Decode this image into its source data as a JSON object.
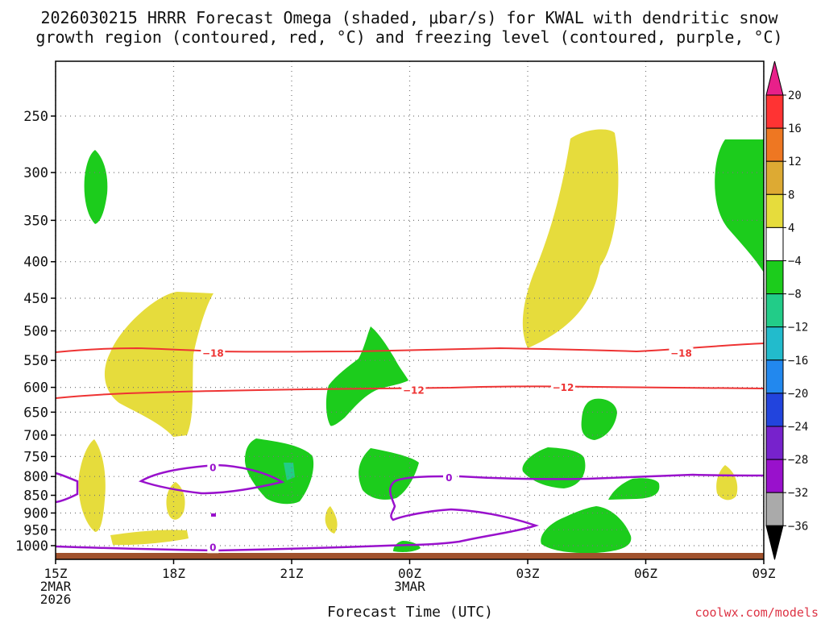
{
  "title_line1": "2026030215 HRRR Forecast Omega (shaded, μbar/s) for KWAL with dendritic snow",
  "title_line2": "growth region (contoured, red, °C) and freezing level (contoured, purple, °C)",
  "xlabel": "Forecast Time (UTC)",
  "credit": "coolwx.com/models",
  "colors": {
    "dgz_contour": "#ee3333",
    "freezing_contour": "#9911cc",
    "ground": "#a0522d",
    "grid": "#777777"
  },
  "chart_data": {
    "type": "contour",
    "x_axis": {
      "ticks": [
        {
          "hours": 0,
          "lines": [
            "15Z",
            "2MAR",
            "2026"
          ]
        },
        {
          "hours": 3,
          "lines": [
            "18Z"
          ]
        },
        {
          "hours": 6,
          "lines": [
            "21Z"
          ]
        },
        {
          "hours": 9,
          "lines": [
            "00Z",
            "3MAR"
          ]
        },
        {
          "hours": 12,
          "lines": [
            "03Z"
          ]
        },
        {
          "hours": 15,
          "lines": [
            "06Z"
          ]
        },
        {
          "hours": 18,
          "lines": [
            "09Z"
          ]
        }
      ],
      "range_hours": [
        0,
        18
      ]
    },
    "y_axis": {
      "unit": "hPa",
      "scale": "pressure (reversed)",
      "ticks": [
        250,
        300,
        350,
        400,
        450,
        500,
        550,
        600,
        650,
        700,
        750,
        800,
        850,
        900,
        950,
        1000
      ],
      "grid": "dotted"
    },
    "colorbar": {
      "arrow_top_color": "#e8208a",
      "arrow_bottom_color": "#000000",
      "segments": [
        {
          "color": "#ff3333"
        },
        {
          "color": "#ee7722"
        },
        {
          "color": "#ddaa33"
        },
        {
          "color": "#e6dc3c"
        },
        {
          "color": "#ffffff"
        },
        {
          "color": "#1ccc1c"
        },
        {
          "color": "#22cc88"
        },
        {
          "color": "#22bbcc"
        },
        {
          "color": "#2288ee"
        },
        {
          "color": "#2244dd"
        },
        {
          "color": "#7722cc"
        },
        {
          "color": "#9911cc"
        },
        {
          "color": "#aaaaaa"
        }
      ],
      "labels": [
        "20",
        "16",
        "12",
        "8",
        "4",
        "−4",
        "−8",
        "−12",
        "−16",
        "−20",
        "−24",
        "−28",
        "−32",
        "−36"
      ]
    },
    "contour_labels": {
      "dgz": [
        {
          "text": "−18",
          "hours": 4.0,
          "hPa": 538
        },
        {
          "text": "−18",
          "hours": 15.9,
          "hPa": 538
        },
        {
          "text": "−12",
          "hours": 9.1,
          "hPa": 606
        },
        {
          "text": "−12",
          "hours": 12.9,
          "hPa": 601
        }
      ],
      "freezing": [
        {
          "text": "0",
          "hours": 4.0,
          "hPa": 778
        },
        {
          "text": "0",
          "hours": 10.0,
          "hPa": 804
        },
        {
          "text": "0",
          "hours": 4.0,
          "hPa": 1006
        }
      ]
    }
  }
}
